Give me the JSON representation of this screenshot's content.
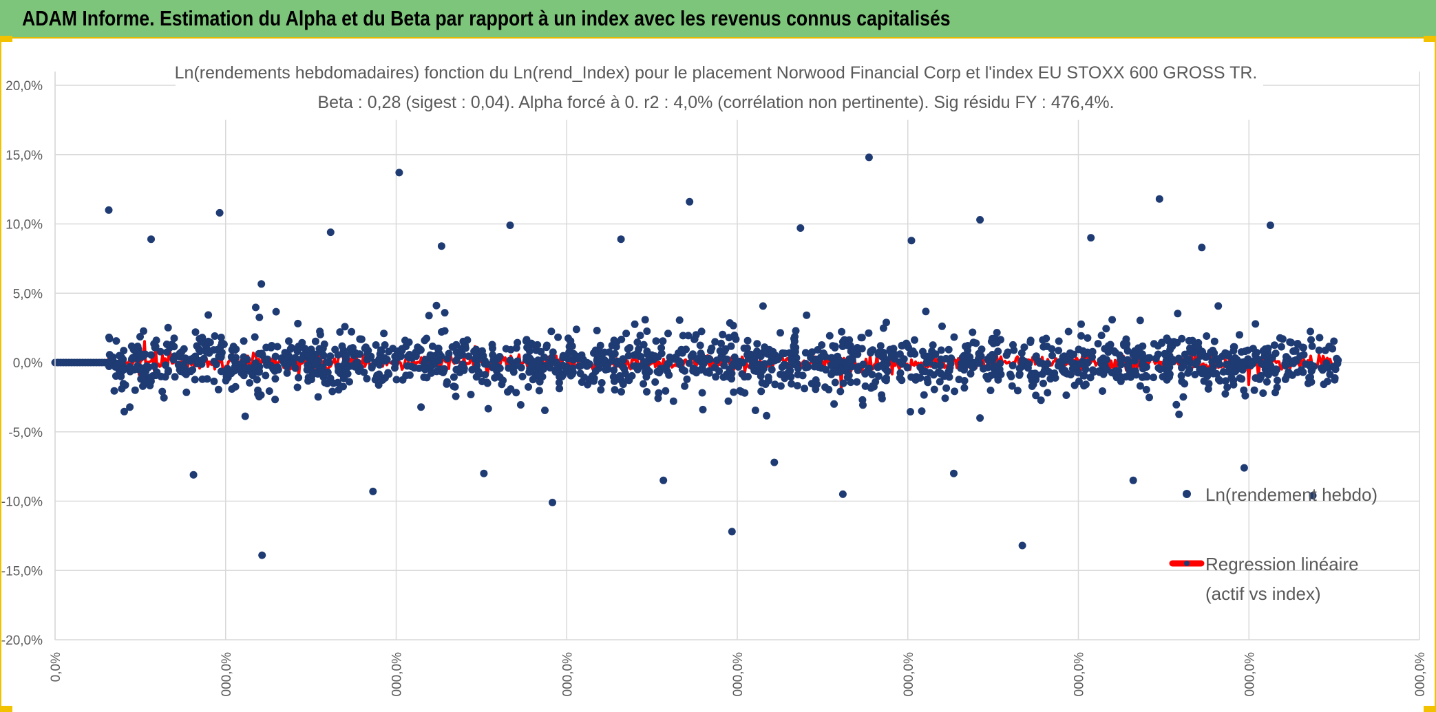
{
  "banner": {
    "title": "ADAM Informe. Estimation du Alpha et du Beta par rapport à un index avec les revenus connus capitalisés"
  },
  "colors": {
    "banner_bg": "#7dc57a",
    "accent_border": "#f2c200",
    "scatter": "#1f3b73",
    "regression": "#ff0000",
    "grid": "#d9d9d9",
    "text": "#595959"
  },
  "chart_data": {
    "type": "scatter",
    "title": "Ln(rendements hebdomadaires) fonction du Ln(rend_Index) pour le placement Norwood Financial Corp et l'index EU STOXX 600 GROSS TR.",
    "subtitle": "Beta : 0,28 (sigest : 0,04). Alpha forcé à 0. r2 : 4,0% (corrélation non pertinente). Sig résidu FY : 476,4%.",
    "ylim": [
      -0.2,
      0.2
    ],
    "y_ticks": [
      "20,0%",
      "15,0%",
      "10,0%",
      "5,0%",
      "0,0%",
      "-5,0%",
      "-10,0%",
      "-15,0%",
      "-20,0%"
    ],
    "y_tick_values": [
      0.2,
      0.15,
      0.1,
      0.05,
      0,
      -0.05,
      -0.1,
      -0.15,
      -0.2
    ],
    "x_ticks": [
      "0,0%",
      "000,0%",
      "000,0%",
      "000,0%",
      "000,0%",
      "000,0%",
      "000,0%",
      "000,0%",
      "000,0%"
    ],
    "grid": true,
    "legend_position": "right",
    "series": [
      {
        "name": "Ln(rendement hebdo)",
        "marker": "dot",
        "color": "#1f3b73",
        "highlighted_points_y": [
          0.11,
          0.148,
          0.137,
          0.118,
          0.116,
          0.108,
          0.103,
          0.099,
          0.099,
          0.097,
          0.094,
          0.09,
          0.089,
          0.089,
          0.088,
          0.084,
          0.083,
          -0.122,
          -0.139,
          -0.132,
          -0.101,
          -0.096,
          -0.095,
          -0.093,
          -0.085,
          -0.085,
          -0.081,
          -0.08,
          -0.08,
          -0.076,
          -0.072
        ]
      },
      {
        "name": "Regression linéaire (actif vs index)",
        "name_line1": "Regression linéaire",
        "name_line2": "(actif vs index)",
        "marker": "line",
        "color": "#ff0000",
        "slope_beta": 0.28,
        "range_y": [
          -0.042,
          0.028
        ]
      }
    ]
  }
}
